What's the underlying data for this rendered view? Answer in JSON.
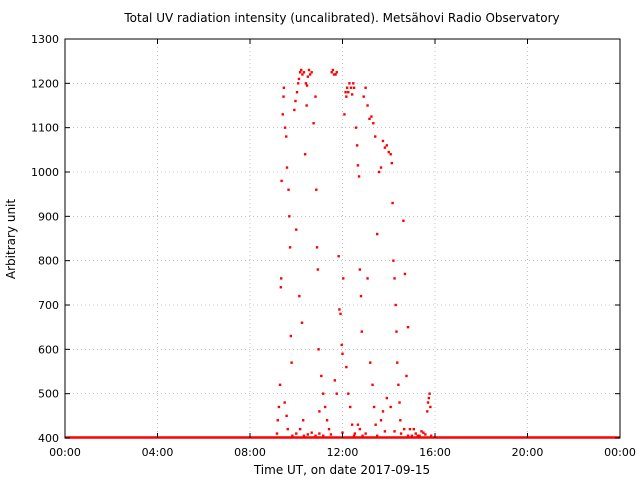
{
  "chart_data": {
    "type": "scatter",
    "title": "Total UV radiation intensity (uncalibrated). Metsähovi Radio Observatory",
    "xlabel": "Time UT, on date 2017-09-15",
    "ylabel": "Arbitrary unit",
    "xlim": [
      "00:00",
      "24:00"
    ],
    "ylim": [
      400,
      1300
    ],
    "x_tick_labels": [
      "00:00",
      "04:00",
      "08:00",
      "12:00",
      "16:00",
      "20:00",
      "00:00"
    ],
    "y_tick_labels": [
      "400",
      "500",
      "600",
      "700",
      "800",
      "900",
      "1000",
      "1100",
      "1200",
      "1300"
    ],
    "grid": true,
    "marker_color": "#ff0000",
    "series": [
      {
        "points": [
          [
            "09:10",
            410
          ],
          [
            "09:12",
            440
          ],
          [
            "09:15",
            470
          ],
          [
            "09:18",
            520
          ],
          [
            "09:20",
            740
          ],
          [
            "09:21",
            760
          ],
          [
            "09:22",
            980
          ],
          [
            "09:25",
            1130
          ],
          [
            "09:27",
            1170
          ],
          [
            "09:28",
            1190
          ],
          [
            "09:31",
            1100
          ],
          [
            "09:34",
            1080
          ],
          [
            "09:36",
            1010
          ],
          [
            "09:40",
            960
          ],
          [
            "09:42",
            900
          ],
          [
            "09:44",
            830
          ],
          [
            "09:46",
            630
          ],
          [
            "09:48",
            570
          ],
          [
            "09:55",
            1140
          ],
          [
            "09:58",
            1160
          ],
          [
            "10:02",
            1180
          ],
          [
            "10:05",
            1200
          ],
          [
            "10:07",
            1210
          ],
          [
            "10:10",
            1225
          ],
          [
            "10:13",
            1230
          ],
          [
            "10:16",
            1220
          ],
          [
            "10:20",
            1225
          ],
          [
            "10:25",
            1200
          ],
          [
            "10:28",
            1195
          ],
          [
            "10:30",
            1215
          ],
          [
            "10:33",
            1230
          ],
          [
            "10:36",
            1220
          ],
          [
            "10:40",
            1225
          ],
          [
            "10:45",
            1110
          ],
          [
            "10:50",
            1170
          ],
          [
            "10:52",
            960
          ],
          [
            "10:54",
            830
          ],
          [
            "10:56",
            780
          ],
          [
            "10:58",
            600
          ],
          [
            "11:00",
            460
          ],
          [
            "10:00",
            870
          ],
          [
            "10:08",
            720
          ],
          [
            "10:15",
            660
          ],
          [
            "10:18",
            440
          ],
          [
            "10:23",
            1040
          ],
          [
            "10:27",
            1150
          ],
          [
            "11:32",
            1225
          ],
          [
            "11:35",
            1230
          ],
          [
            "11:38",
            1220
          ],
          [
            "11:42",
            1220
          ],
          [
            "11:45",
            1225
          ],
          [
            "11:50",
            810
          ],
          [
            "11:52",
            690
          ],
          [
            "11:55",
            680
          ],
          [
            "11:58",
            610
          ],
          [
            "12:00",
            590
          ],
          [
            "12:02",
            760
          ],
          [
            "12:05",
            1130
          ],
          [
            "12:08",
            1180
          ],
          [
            "12:10",
            1170
          ],
          [
            "12:12",
            1190
          ],
          [
            "12:15",
            1180
          ],
          [
            "12:18",
            1200
          ],
          [
            "12:22",
            1190
          ],
          [
            "12:25",
            1175
          ],
          [
            "12:28",
            1200
          ],
          [
            "12:30",
            1190
          ],
          [
            "12:35",
            1100
          ],
          [
            "12:38",
            1060
          ],
          [
            "12:40",
            1015
          ],
          [
            "12:43",
            990
          ],
          [
            "12:45",
            780
          ],
          [
            "12:48",
            720
          ],
          [
            "12:50",
            640
          ],
          [
            "12:55",
            1170
          ],
          [
            "13:00",
            1190
          ],
          [
            "13:05",
            1150
          ],
          [
            "13:10",
            1120
          ],
          [
            "13:15",
            1125
          ],
          [
            "13:20",
            1110
          ],
          [
            "13:25",
            1080
          ],
          [
            "13:30",
            860
          ],
          [
            "13:35",
            1000
          ],
          [
            "13:40",
            1010
          ],
          [
            "13:45",
            1070
          ],
          [
            "13:50",
            1055
          ],
          [
            "13:55",
            1060
          ],
          [
            "14:00",
            1045
          ],
          [
            "14:05",
            1040
          ],
          [
            "14:08",
            1020
          ],
          [
            "14:10",
            930
          ],
          [
            "14:12",
            800
          ],
          [
            "14:15",
            760
          ],
          [
            "14:18",
            700
          ],
          [
            "14:20",
            640
          ],
          [
            "14:22",
            570
          ],
          [
            "14:25",
            520
          ],
          [
            "14:28",
            480
          ],
          [
            "14:30",
            440
          ],
          [
            "14:32",
            410
          ],
          [
            "14:38",
            890
          ],
          [
            "14:42",
            770
          ],
          [
            "14:46",
            540
          ],
          [
            "14:50",
            650
          ],
          [
            "14:55",
            420
          ],
          [
            "15:00",
            405
          ],
          [
            "15:10",
            410
          ],
          [
            "15:20",
            405
          ],
          [
            "15:30",
            412
          ],
          [
            "15:35",
            408
          ],
          [
            "15:40",
            460
          ],
          [
            "15:42",
            480
          ],
          [
            "15:44",
            490
          ],
          [
            "15:46",
            500
          ],
          [
            "15:48",
            470
          ],
          [
            "13:05",
            760
          ],
          [
            "13:12",
            570
          ],
          [
            "13:18",
            520
          ],
          [
            "13:22",
            470
          ],
          [
            "13:26",
            430
          ],
          [
            "11:05",
            540
          ],
          [
            "11:10",
            500
          ],
          [
            "11:15",
            470
          ],
          [
            "11:20",
            440
          ],
          [
            "11:25",
            420
          ],
          [
            "11:40",
            530
          ],
          [
            "11:45",
            500
          ],
          [
            "12:10",
            560
          ],
          [
            "12:15",
            500
          ],
          [
            "12:20",
            470
          ],
          [
            "12:25",
            430
          ],
          [
            "12:32",
            410
          ],
          [
            "12:40",
            430
          ],
          [
            "12:52",
            405
          ],
          [
            "13:00",
            410
          ],
          [
            "13:40",
            440
          ],
          [
            "13:45",
            460
          ],
          [
            "13:55",
            490
          ],
          [
            "14:05",
            470
          ],
          [
            "14:15",
            415
          ],
          [
            "09:30",
            480
          ],
          [
            "09:35",
            450
          ],
          [
            "09:38",
            420
          ],
          [
            "09:50",
            405
          ],
          [
            "10:00",
            410
          ],
          [
            "10:10",
            420
          ],
          [
            "10:20",
            405
          ],
          [
            "10:30",
            408
          ],
          [
            "10:40",
            412
          ],
          [
            "10:50",
            405
          ],
          [
            "11:00",
            410
          ],
          [
            "11:10",
            405
          ],
          [
            "11:30",
            408
          ],
          [
            "12:00",
            412
          ],
          [
            "12:30",
            405
          ],
          [
            "12:45",
            420
          ],
          [
            "13:30",
            405
          ],
          [
            "13:50",
            415
          ],
          [
            "14:40",
            420
          ],
          [
            "14:50",
            405
          ],
          [
            "15:05",
            420
          ],
          [
            "15:15",
            405
          ],
          [
            "15:25",
            415
          ],
          [
            "15:50",
            405
          ]
        ]
      }
    ]
  }
}
